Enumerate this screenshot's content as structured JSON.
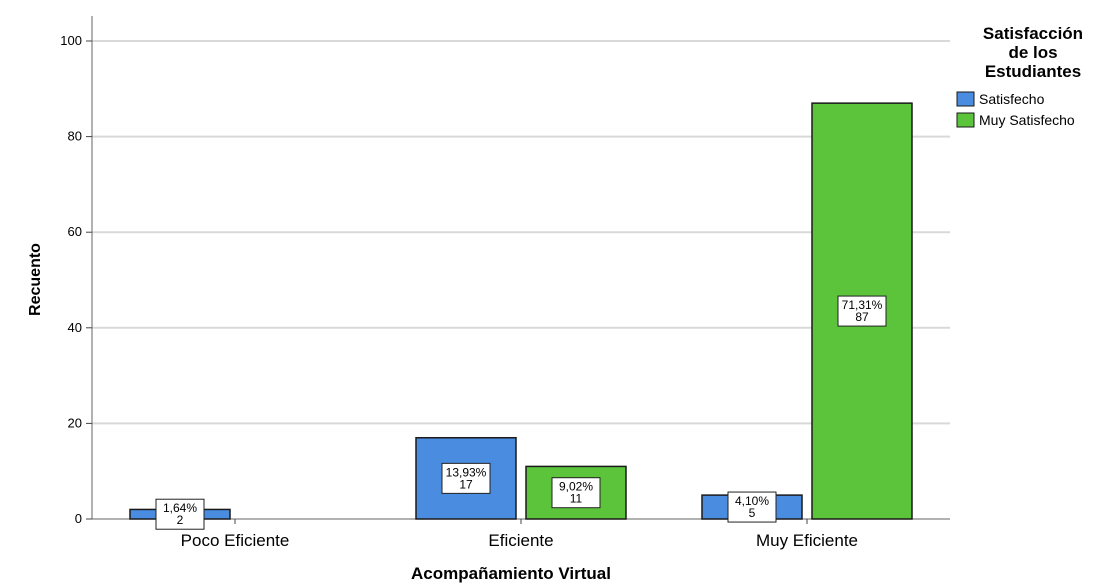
{
  "chart_data": {
    "type": "bar",
    "categories": [
      "Poco Eficiente",
      "Eficiente",
      "Muy Eficiente"
    ],
    "series": [
      {
        "name": "Satisfecho",
        "color": "#4a8ce0",
        "values": [
          2,
          17,
          5
        ],
        "percent_labels": [
          "1,64%",
          "13,93%",
          "4,10%"
        ]
      },
      {
        "name": "Muy Satisfecho",
        "color": "#5cc43a",
        "values": [
          0,
          11,
          87
        ],
        "percent_labels": [
          "",
          "9,02%",
          "71,31%"
        ]
      }
    ],
    "title": "",
    "xlabel": "Acompañamiento Virtual",
    "ylabel": "Recuento",
    "ylim": [
      0,
      100
    ],
    "yticks": [
      0,
      20,
      40,
      60,
      80,
      100
    ],
    "grid": true,
    "legend": {
      "title_lines": [
        "Satisfacción",
        "de los",
        "Estudiantes"
      ],
      "placement": "right"
    }
  }
}
